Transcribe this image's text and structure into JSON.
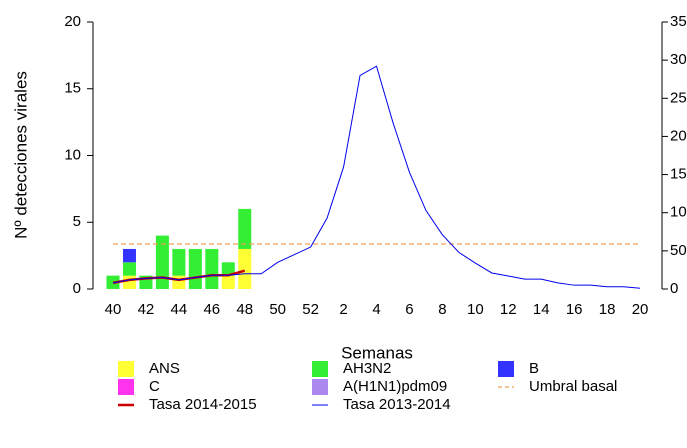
{
  "chart_data": {
    "type": "combo",
    "ylabel": "Nº detecciones virales",
    "xlabel": "Semanas",
    "categories": [
      40,
      null,
      42,
      null,
      44,
      null,
      46,
      null,
      48,
      null,
      50,
      null,
      52,
      null,
      2,
      null,
      4,
      null,
      6,
      null,
      8,
      null,
      10,
      null,
      12,
      null,
      14,
      null,
      16,
      null,
      18,
      null,
      20
    ],
    "ylim": [
      0,
      20
    ],
    "yticks": [
      0,
      5,
      10,
      15,
      20
    ],
    "y2lim": [
      0,
      350
    ],
    "y2ticks": [
      0,
      50,
      100,
      150,
      200,
      250,
      300,
      350
    ],
    "series": [
      {
        "name": "ANS",
        "color": "#ffff33",
        "style": "bar",
        "values": [
          0,
          1,
          0,
          0,
          1,
          0,
          0,
          1,
          3,
          null,
          null,
          null,
          null,
          null,
          null,
          null,
          null,
          null,
          null,
          null,
          null,
          null,
          null,
          null,
          null,
          null,
          null,
          null,
          null,
          null,
          null,
          null,
          null
        ]
      },
      {
        "name": "AH3N2",
        "color": "#33ee33",
        "style": "bar",
        "values": [
          1,
          1,
          1,
          4,
          2,
          3,
          3,
          1,
          3,
          null,
          null,
          null,
          null,
          null,
          null,
          null,
          null,
          null,
          null,
          null,
          null,
          null,
          null,
          null,
          null,
          null,
          null,
          null,
          null,
          null,
          null,
          null,
          null
        ]
      },
      {
        "name": "B",
        "color": "#3333ff",
        "style": "bar",
        "values": [
          0,
          1,
          0,
          0,
          0,
          0,
          0,
          0,
          0,
          null,
          null,
          null,
          null,
          null,
          null,
          null,
          null,
          null,
          null,
          null,
          null,
          null,
          null,
          null,
          null,
          null,
          null,
          null,
          null,
          null,
          null,
          null,
          null
        ]
      },
      {
        "name": "C",
        "color": "#ff33ee",
        "style": "bar",
        "values": [
          0,
          0,
          0,
          0,
          0,
          0,
          0,
          0,
          0,
          null,
          null,
          null,
          null,
          null,
          null,
          null,
          null,
          null,
          null,
          null,
          null,
          null,
          null,
          null,
          null,
          null,
          null,
          null,
          null,
          null,
          null,
          null,
          null
        ]
      },
      {
        "name": "A(H1N1)pdm09",
        "color": "#aa88ee",
        "style": "bar",
        "values": [
          0,
          0,
          0,
          0,
          0,
          0,
          0,
          0,
          0,
          null,
          null,
          null,
          null,
          null,
          null,
          null,
          null,
          null,
          null,
          null,
          null,
          null,
          null,
          null,
          null,
          null,
          null,
          null,
          null,
          null,
          null,
          null,
          null
        ]
      },
      {
        "name": "Umbral basal",
        "color": "#f0a050",
        "style": "dash",
        "axis": "y2",
        "values": [
          59,
          59,
          59,
          59,
          59,
          59,
          59,
          59,
          59,
          59,
          59,
          59,
          59,
          59,
          59,
          59,
          59,
          59,
          59,
          59,
          59,
          59,
          59,
          59,
          59,
          59,
          59,
          59,
          59,
          59,
          59,
          59,
          59
        ]
      },
      {
        "name": "Tasa 2014-2015",
        "color": "#cc0000",
        "style": "line",
        "width": 2.5,
        "axis": "y2",
        "values": [
          8,
          12,
          14,
          15,
          12,
          15,
          18,
          18,
          24,
          null,
          null,
          null,
          null,
          null,
          null,
          null,
          null,
          null,
          null,
          null,
          null,
          null,
          null,
          null,
          null,
          null,
          null,
          null,
          null,
          null,
          null,
          null,
          null
        ]
      },
      {
        "name": "Tasa 2013-2014",
        "color": "#0000ee",
        "style": "line",
        "width": 1,
        "axis": "y2",
        "values": [
          8,
          12,
          14,
          15,
          12,
          15,
          18,
          18,
          20,
          20,
          35,
          45,
          55,
          93,
          160,
          280,
          292,
          218,
          153,
          103,
          71,
          48,
          34,
          21,
          17,
          13,
          13,
          8,
          5,
          5,
          3,
          3,
          1
        ]
      }
    ]
  }
}
